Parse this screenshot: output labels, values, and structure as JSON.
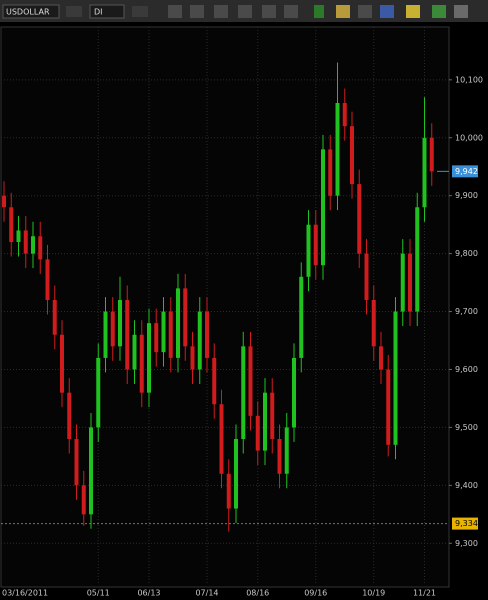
{
  "toolbar": {
    "symbol": "USDOLLAR",
    "period": "DI"
  },
  "chart_data": {
    "type": "candlestick",
    "categories": [
      "03/16/2011",
      null,
      null,
      null,
      null,
      null,
      null,
      null,
      null,
      null,
      null,
      null,
      null,
      "05/11",
      null,
      null,
      null,
      null,
      null,
      null,
      "06/13",
      null,
      null,
      null,
      null,
      null,
      null,
      null,
      "07/14",
      null,
      null,
      null,
      null,
      null,
      null,
      "08/16",
      null,
      null,
      null,
      null,
      null,
      null,
      null,
      "09/16",
      null,
      null,
      null,
      null,
      null,
      null,
      null,
      "10/19",
      null,
      null,
      null,
      null,
      null,
      null,
      "11/21",
      null
    ],
    "open": [
      9900,
      9880,
      9820,
      9840,
      9800,
      9830,
      9790,
      9720,
      9660,
      9560,
      9480,
      9400,
      9350,
      9500,
      9620,
      9700,
      9640,
      9720,
      9600,
      9660,
      9560,
      9680,
      9630,
      9700,
      9620,
      9740,
      9640,
      9600,
      9700,
      9620,
      9540,
      9420,
      9360,
      9480,
      9640,
      9520,
      9460,
      9560,
      9480,
      9420,
      9500,
      9620,
      9760,
      9850,
      9780,
      9980,
      9900,
      10060,
      10020,
      9920,
      9800,
      9720,
      9640,
      9600,
      9470,
      9700,
      9800,
      9700,
      9880,
      10000
    ],
    "high": [
      9925,
      9905,
      9865,
      9865,
      9855,
      9855,
      9815,
      9745,
      9685,
      9585,
      9505,
      9425,
      9525,
      9645,
      9725,
      9725,
      9760,
      9745,
      9685,
      9685,
      9705,
      9705,
      9725,
      9725,
      9765,
      9765,
      9665,
      9725,
      9725,
      9645,
      9565,
      9445,
      9505,
      9665,
      9665,
      9545,
      9585,
      9585,
      9505,
      9525,
      9645,
      9785,
      9875,
      9875,
      10005,
      10005,
      10130,
      10085,
      10045,
      9945,
      9825,
      9745,
      9665,
      9625,
      9725,
      9825,
      9825,
      9905,
      10070,
      10025
    ],
    "low": [
      9855,
      9795,
      9795,
      9775,
      9775,
      9765,
      9695,
      9635,
      9535,
      9455,
      9375,
      9330,
      9325,
      9475,
      9595,
      9615,
      9615,
      9575,
      9575,
      9535,
      9535,
      9605,
      9605,
      9595,
      9595,
      9615,
      9575,
      9575,
      9595,
      9515,
      9395,
      9320,
      9335,
      9455,
      9495,
      9435,
      9435,
      9455,
      9395,
      9395,
      9475,
      9595,
      9735,
      9755,
      9755,
      9875,
      9875,
      9995,
      9895,
      9775,
      9695,
      9615,
      9575,
      9450,
      9445,
      9675,
      9675,
      9675,
      9855,
      9917
    ],
    "close": [
      9880,
      9820,
      9840,
      9800,
      9830,
      9790,
      9720,
      9660,
      9560,
      9480,
      9400,
      9350,
      9500,
      9620,
      9700,
      9640,
      9720,
      9600,
      9660,
      9560,
      9680,
      9630,
      9700,
      9620,
      9740,
      9640,
      9600,
      9700,
      9620,
      9540,
      9420,
      9360,
      9480,
      9640,
      9520,
      9460,
      9560,
      9480,
      9420,
      9500,
      9620,
      9760,
      9850,
      9780,
      9980,
      9900,
      10060,
      10020,
      9920,
      9800,
      9720,
      9640,
      9600,
      9470,
      9700,
      9800,
      9700,
      9880,
      10000,
      9942
    ],
    "up_color": "#1fc21f",
    "down_color": "#d01c1c",
    "ylim": [
      9228,
      10186
    ],
    "yticks": [
      {
        "value": 9300,
        "label": "9,300"
      },
      {
        "value": 9400,
        "label": "9,400"
      },
      {
        "value": 9500,
        "label": "9,500"
      },
      {
        "value": 9600,
        "label": "9,600"
      },
      {
        "value": 9700,
        "label": "9,700"
      },
      {
        "value": 9800,
        "label": "9,800"
      },
      {
        "value": 9900,
        "label": "9,900"
      },
      {
        "value": 10000,
        "label": "10,000"
      },
      {
        "value": 10100,
        "label": "10,100"
      }
    ],
    "grid": true,
    "last_price": {
      "value": 9942,
      "label": "9,942"
    },
    "low_line": {
      "value": 9334,
      "label": "9,334"
    }
  }
}
